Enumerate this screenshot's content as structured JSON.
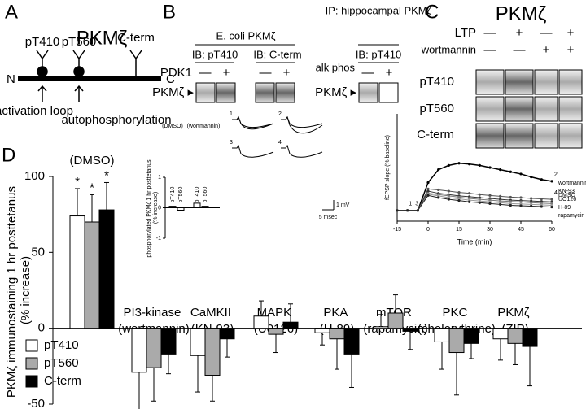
{
  "panels": {
    "a": {
      "letter": "A",
      "title": "PKMζ",
      "sites": [
        "pT410",
        "pT560",
        "C-term"
      ],
      "n": "N",
      "c": "C",
      "arrow_labels": [
        "activation loop",
        "autophosphorylation"
      ]
    },
    "b": {
      "letter": "B",
      "left_title": "E. coli PKMζ",
      "left_blots": [
        "IB: pT410",
        "IB: C-term"
      ],
      "treatment": "PDK1",
      "signs": [
        "—",
        "+",
        "—",
        "+"
      ],
      "band": "PKMζ ▸",
      "right_title": "IP: hippocampal PKMζ",
      "right_blot": "IB: pT410",
      "right_treatment": "alk phos",
      "right_signs": [
        "—",
        "+"
      ],
      "right_band": "PKMζ ▸"
    },
    "c": {
      "letter": "C",
      "title": "PKMζ",
      "rows": [
        {
          "label": "LTP",
          "signs": [
            "—",
            "+",
            "—",
            "+"
          ]
        },
        {
          "label": "wortmannin",
          "signs": [
            "—",
            "—",
            "+",
            "+"
          ]
        }
      ],
      "blots": [
        "pT410",
        "pT560",
        "C-term"
      ]
    },
    "d": {
      "letter": "D",
      "traces": [
        "1",
        "2",
        "3",
        "4"
      ],
      "scale_v": "1 mV",
      "scale_t": "5 msec"
    }
  },
  "chart_data": [
    {
      "type": "bar",
      "ylabel": "PKMζ immunostaining 1 hr posttetanus (% increase)",
      "categories": [
        "(DMSO)",
        "PI3-kinase (wortmannin)",
        "CaMKII (KN-93)",
        "MAPK (U0126)",
        "PKA (H-89)",
        "mTOR (rapamycin)",
        "PKC (chelerythrine)",
        "PKMζ (ZIP)"
      ],
      "series": [
        {
          "name": "pT410",
          "color": "#ffffff",
          "values": [
            74,
            -29,
            -18,
            8,
            -3,
            1,
            -9,
            -7
          ],
          "errors": [
            18,
            28,
            24,
            10,
            8,
            8,
            18,
            14
          ]
        },
        {
          "name": "pT560",
          "color": "#aaaaaa",
          "values": [
            70,
            -26,
            -31,
            -4,
            -7,
            10,
            -16,
            -10
          ],
          "errors": [
            18,
            22,
            17,
            12,
            20,
            12,
            28,
            14
          ]
        },
        {
          "name": "C-term",
          "color": "#000000",
          "values": [
            78,
            -17,
            -7,
            4,
            -17,
            -2,
            -10,
            -12
          ],
          "errors": [
            18,
            13,
            12,
            12,
            22,
            12,
            10,
            26
          ]
        }
      ],
      "annotations": [
        "*",
        "*",
        "*"
      ],
      "ylim": [
        -50,
        100
      ],
      "yticks": [
        -50,
        0,
        50,
        100
      ],
      "legend": "lower left"
    },
    {
      "type": "bar",
      "ylabel": "phosphorylated PKMζ 1 hr posttetanus (% increase)",
      "groups": [
        "(DMSO)",
        "(wortmannin)"
      ],
      "categories": [
        "pT410",
        "pT560",
        "pT410",
        "pT560"
      ],
      "values": [
        0.05,
        -0.08,
        0.15,
        0.05
      ],
      "ylim": [
        -1,
        1
      ],
      "yticks": [
        -1,
        0,
        1
      ]
    },
    {
      "type": "line",
      "xlabel": "Time (min)",
      "ylabel": "fEPSP slope (% baseline)",
      "x": [
        -15,
        -10,
        -5,
        0,
        5,
        10,
        15,
        20,
        25,
        30,
        35,
        40,
        45,
        50,
        55,
        60
      ],
      "series": [
        {
          "name": "DMSO",
          "color": "#000000",
          "values": [
            100,
            100,
            100,
            165,
            195,
            205,
            210,
            208,
            205,
            200,
            195,
            190,
            185,
            178,
            172,
            168
          ]
        },
        {
          "name": "wortmannin",
          "color": "#555555",
          "values": [
            100,
            100,
            100,
            150,
            148,
            145,
            142,
            140,
            137,
            135,
            133,
            131,
            130,
            128,
            127,
            126
          ]
        },
        {
          "name": "KN-93",
          "color": "#333333",
          "values": [
            100,
            100,
            100,
            145,
            140,
            137,
            134,
            132,
            130,
            128,
            126,
            124,
            123,
            122,
            121,
            120
          ]
        },
        {
          "name": "UO126",
          "color": "#777777",
          "values": [
            100,
            100,
            100,
            140,
            137,
            134,
            131,
            128,
            126,
            124,
            122,
            121,
            120,
            118,
            117,
            116
          ]
        },
        {
          "name": "H-89",
          "color": "#999999",
          "values": [
            100,
            100,
            100,
            138,
            134,
            130,
            127,
            124,
            122,
            120,
            118,
            116,
            115,
            114,
            113,
            112
          ]
        },
        {
          "name": "rapamycin",
          "color": "#222222",
          "values": [
            100,
            100,
            100,
            135,
            130,
            126,
            123,
            120,
            118,
            116,
            114,
            112,
            111,
            110,
            109,
            108
          ]
        }
      ],
      "annotations": [
        "1, 3",
        "2",
        "4"
      ],
      "xlim": [
        -15,
        60
      ],
      "xticks": [
        -15,
        0,
        15,
        30,
        45,
        60
      ],
      "ylim": [
        75,
        325
      ]
    }
  ]
}
